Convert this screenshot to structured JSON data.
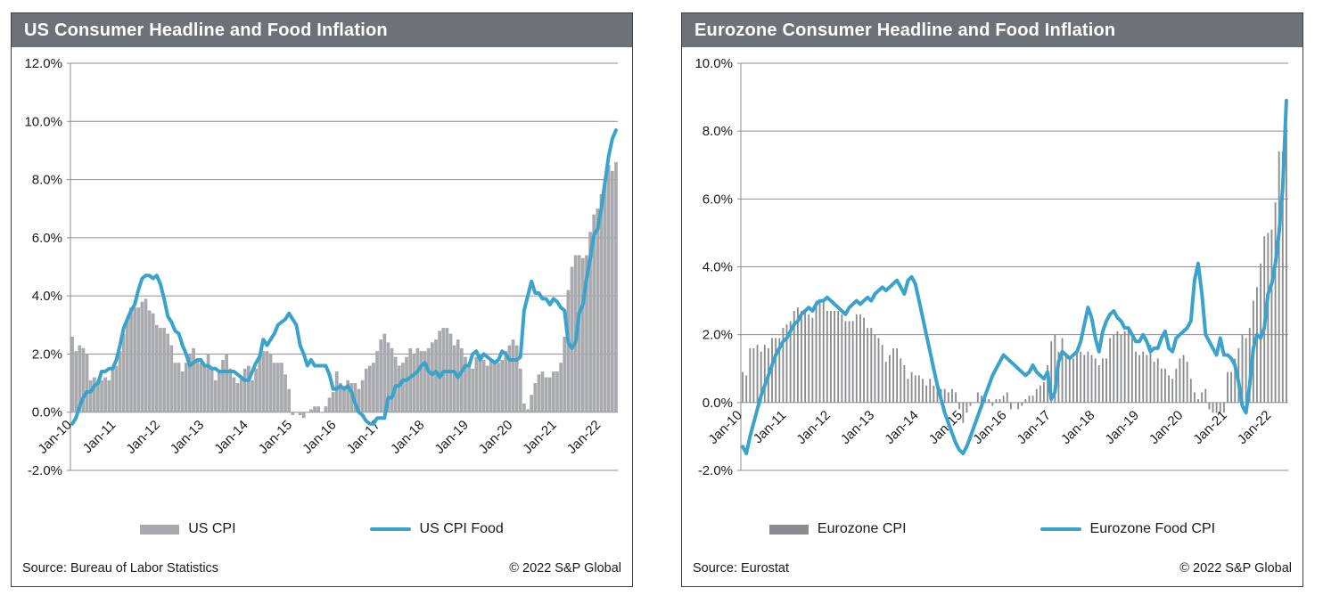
{
  "colors": {
    "header_bg": "#6d7278",
    "header_text": "#ffffff",
    "grid": "#8c8f93",
    "axis_text": "#1a1a1a",
    "panel_border": "#3f3f3f",
    "background": "#ffffff",
    "line_blue": "#39a3cc"
  },
  "chart_data": [
    {
      "type": "bar+line",
      "title": "US Consumer Headline and Food Inflation",
      "x_frequency": "monthly",
      "x_range": [
        "Jan-2010",
        "May-2022"
      ],
      "x_tick_labels": [
        "Jan-10",
        "Jan-11",
        "Jan-12",
        "Jan-13",
        "Jan-14",
        "Jan-15",
        "Jan-16",
        "Jan-17",
        "Jan-18",
        "Jan-19",
        "Jan-20",
        "Jan-21",
        "Jan-22"
      ],
      "ylim": [
        -2,
        12
      ],
      "yticks": [
        12,
        10,
        8,
        6,
        4,
        2,
        0,
        -2
      ],
      "ytick_format": "0.0%",
      "grid": true,
      "legend_position": "bottom",
      "bar_width_ratio": 0.9,
      "series": [
        {
          "name": "US CPI",
          "type": "bar",
          "color": "#a8aaad",
          "values": [
            2.6,
            2.1,
            2.3,
            2.2,
            2.0,
            1.1,
            1.2,
            1.1,
            1.1,
            1.2,
            1.1,
            1.5,
            1.6,
            2.1,
            2.7,
            3.2,
            3.6,
            3.6,
            3.6,
            3.8,
            3.9,
            3.5,
            3.4,
            3.0,
            2.9,
            2.9,
            2.7,
            2.3,
            1.7,
            1.7,
            1.4,
            1.7,
            2.0,
            2.2,
            1.8,
            1.7,
            1.6,
            2.0,
            1.5,
            1.1,
            1.4,
            1.8,
            2.0,
            1.5,
            1.2,
            1.0,
            1.2,
            1.5,
            1.6,
            1.1,
            1.5,
            2.0,
            2.1,
            2.1,
            2.0,
            1.7,
            1.7,
            1.7,
            1.3,
            0.8,
            -0.1,
            0.0,
            -0.1,
            -0.2,
            0.0,
            0.1,
            0.2,
            0.2,
            0.0,
            0.2,
            0.5,
            0.7,
            1.4,
            1.0,
            0.9,
            1.1,
            1.0,
            1.0,
            0.8,
            1.1,
            1.5,
            1.6,
            1.7,
            2.1,
            2.5,
            2.7,
            2.4,
            2.2,
            1.9,
            1.6,
            1.7,
            1.9,
            2.2,
            2.0,
            2.2,
            2.1,
            2.1,
            2.2,
            2.4,
            2.5,
            2.8,
            2.9,
            2.9,
            2.7,
            2.3,
            2.5,
            2.2,
            1.9,
            1.6,
            1.5,
            1.9,
            2.0,
            1.8,
            1.6,
            1.8,
            1.7,
            1.7,
            1.8,
            2.1,
            2.3,
            2.5,
            2.3,
            1.5,
            0.3,
            0.1,
            0.6,
            1.0,
            1.3,
            1.4,
            1.2,
            1.2,
            1.4,
            1.4,
            1.7,
            2.6,
            4.2,
            5.0,
            5.4,
            5.4,
            5.3,
            5.4,
            6.2,
            6.8,
            7.0,
            7.5,
            7.9,
            8.5,
            8.3,
            8.6
          ]
        },
        {
          "name": "US CPI Food",
          "type": "line",
          "color": "#39a3cc",
          "values": [
            -0.4,
            -0.2,
            0.2,
            0.5,
            0.7,
            0.7,
            0.9,
            1.0,
            1.4,
            1.4,
            1.5,
            1.5,
            1.8,
            2.3,
            2.9,
            3.2,
            3.5,
            3.7,
            4.2,
            4.6,
            4.7,
            4.7,
            4.6,
            4.7,
            4.4,
            3.9,
            3.3,
            3.1,
            2.8,
            2.7,
            2.3,
            2.0,
            1.6,
            1.7,
            1.8,
            1.8,
            1.6,
            1.6,
            1.5,
            1.5,
            1.4,
            1.4,
            1.4,
            1.4,
            1.4,
            1.3,
            1.2,
            1.1,
            1.1,
            1.4,
            1.7,
            1.9,
            2.5,
            2.3,
            2.5,
            2.7,
            3.0,
            3.1,
            3.2,
            3.4,
            3.2,
            3.0,
            2.3,
            2.0,
            1.6,
            1.8,
            1.6,
            1.6,
            1.6,
            1.6,
            1.3,
            0.8,
            0.8,
            0.9,
            0.8,
            0.9,
            0.7,
            0.3,
            0.0,
            -0.1,
            -0.3,
            -0.4,
            -0.4,
            -0.2,
            -0.2,
            -0.2,
            0.5,
            0.5,
            0.9,
            0.9,
            1.1,
            1.1,
            1.2,
            1.3,
            1.4,
            1.6,
            1.7,
            1.4,
            1.3,
            1.4,
            1.2,
            1.4,
            1.4,
            1.4,
            1.4,
            1.2,
            1.4,
            1.6,
            1.6,
            2.0,
            2.1,
            1.8,
            2.0,
            1.9,
            1.8,
            1.7,
            1.8,
            2.1,
            2.0,
            1.8,
            1.8,
            1.8,
            1.9,
            3.5,
            4.0,
            4.5,
            4.1,
            4.1,
            3.9,
            3.9,
            3.7,
            3.9,
            3.8,
            3.6,
            3.5,
            2.4,
            2.2,
            2.4,
            3.4,
            3.7,
            4.6,
            5.3,
            6.1,
            6.3,
            7.0,
            7.9,
            8.8,
            9.4,
            9.7
          ]
        }
      ],
      "source": "Source: Bureau of Labor Statistics",
      "copyright": "© 2022 S&P Global"
    },
    {
      "type": "bar+line",
      "title": "Eurozone Consumer Headline and Food Inflation",
      "x_frequency": "monthly",
      "x_range": [
        "Jan-2010",
        "May-2022"
      ],
      "x_tick_labels": [
        "Jan-10",
        "Jan-11",
        "Jan-12",
        "Jan-13",
        "Jan-14",
        "Jan-15",
        "Jan-16",
        "Jan-17",
        "Jan-18",
        "Jan-19",
        "Jan-20",
        "Jan-21",
        "Jan-22"
      ],
      "ylim": [
        -2,
        10
      ],
      "yticks": [
        10,
        8,
        6,
        4,
        2,
        0,
        -2
      ],
      "ytick_format": "0.0%",
      "grid": true,
      "legend_position": "bottom",
      "bar_width_ratio": 0.45,
      "series": [
        {
          "name": "Eurozone CPI",
          "type": "bar",
          "color": "#8a8c8f",
          "values": [
            0.9,
            0.8,
            1.6,
            1.6,
            1.7,
            1.5,
            1.7,
            1.6,
            1.9,
            1.9,
            1.9,
            2.2,
            2.3,
            2.4,
            2.7,
            2.8,
            2.7,
            2.7,
            2.6,
            2.5,
            3.0,
            3.0,
            3.0,
            2.7,
            2.7,
            2.7,
            2.7,
            2.6,
            2.4,
            2.4,
            2.4,
            2.6,
            2.6,
            2.5,
            2.2,
            2.2,
            2.0,
            1.9,
            1.7,
            1.2,
            1.4,
            1.6,
            1.6,
            1.3,
            1.1,
            0.7,
            0.9,
            0.8,
            0.8,
            0.7,
            0.5,
            0.7,
            0.5,
            0.5,
            0.4,
            0.4,
            0.3,
            0.4,
            0.3,
            -0.2,
            -0.6,
            -0.3,
            -0.1,
            0.0,
            0.3,
            0.2,
            0.2,
            0.1,
            -0.1,
            0.1,
            0.1,
            0.2,
            0.3,
            -0.2,
            0.0,
            -0.2,
            -0.1,
            0.1,
            0.2,
            0.2,
            0.4,
            0.5,
            0.6,
            1.1,
            1.8,
            2.0,
            1.5,
            1.9,
            1.4,
            1.3,
            1.3,
            1.5,
            1.5,
            1.4,
            1.5,
            1.4,
            1.3,
            1.1,
            1.3,
            1.3,
            1.9,
            2.0,
            2.1,
            2.0,
            2.1,
            2.2,
            1.9,
            1.5,
            1.4,
            1.5,
            1.4,
            1.7,
            1.2,
            1.3,
            1.0,
            1.0,
            0.8,
            0.7,
            1.0,
            1.3,
            1.4,
            1.2,
            0.7,
            0.3,
            0.1,
            0.3,
            0.4,
            -0.2,
            -0.3,
            -0.3,
            -0.3,
            -0.3,
            0.9,
            0.9,
            1.3,
            1.6,
            2.0,
            1.9,
            2.2,
            3.0,
            3.4,
            4.1,
            4.9,
            5.0,
            5.1,
            5.9,
            7.4,
            7.4,
            8.1
          ]
        },
        {
          "name": "Eurozone Food CPI",
          "type": "line",
          "color": "#39a3cc",
          "values": [
            -1.3,
            -1.5,
            -1.0,
            -0.6,
            -0.2,
            0.2,
            0.5,
            0.8,
            1.1,
            1.4,
            1.6,
            1.8,
            1.9,
            2.1,
            2.3,
            2.4,
            2.6,
            2.7,
            2.8,
            2.7,
            2.9,
            3.0,
            3.0,
            3.1,
            3.0,
            2.9,
            2.8,
            2.7,
            2.6,
            2.8,
            2.9,
            3.0,
            2.9,
            3.0,
            3.1,
            3.0,
            3.2,
            3.3,
            3.4,
            3.3,
            3.4,
            3.5,
            3.6,
            3.4,
            3.2,
            3.6,
            3.7,
            3.5,
            3.0,
            2.5,
            2.0,
            1.5,
            1.0,
            0.5,
            0.1,
            -0.3,
            -0.6,
            -0.9,
            -1.2,
            -1.4,
            -1.5,
            -1.3,
            -1.0,
            -0.7,
            -0.4,
            -0.1,
            0.2,
            0.5,
            0.8,
            1.0,
            1.2,
            1.4,
            1.3,
            1.2,
            1.1,
            1.0,
            0.9,
            0.8,
            0.9,
            1.1,
            0.9,
            0.8,
            0.7,
            0.9,
            0.1,
            0.3,
            1.2,
            1.5,
            1.4,
            1.3,
            1.4,
            1.5,
            1.8,
            2.3,
            2.8,
            2.5,
            1.9,
            1.5,
            2.1,
            2.4,
            2.6,
            2.7,
            2.5,
            2.4,
            2.2,
            2.2,
            2.0,
            1.8,
            1.8,
            2.0,
            1.8,
            1.5,
            1.6,
            1.6,
            1.9,
            2.1,
            1.6,
            1.5,
            1.9,
            2.0,
            2.1,
            2.2,
            2.4,
            3.6,
            4.1,
            3.2,
            2.0,
            1.8,
            1.6,
            1.4,
            1.9,
            1.4,
            1.4,
            1.3,
            1.1,
            0.6,
            -0.1,
            -0.3,
            0.5,
            1.6,
            2.0,
            1.9,
            2.2,
            3.2,
            3.5,
            4.1,
            5.0,
            6.3,
            8.9
          ]
        }
      ],
      "source": "Source: Eurostat",
      "copyright": "© 2022 S&P Global"
    }
  ]
}
